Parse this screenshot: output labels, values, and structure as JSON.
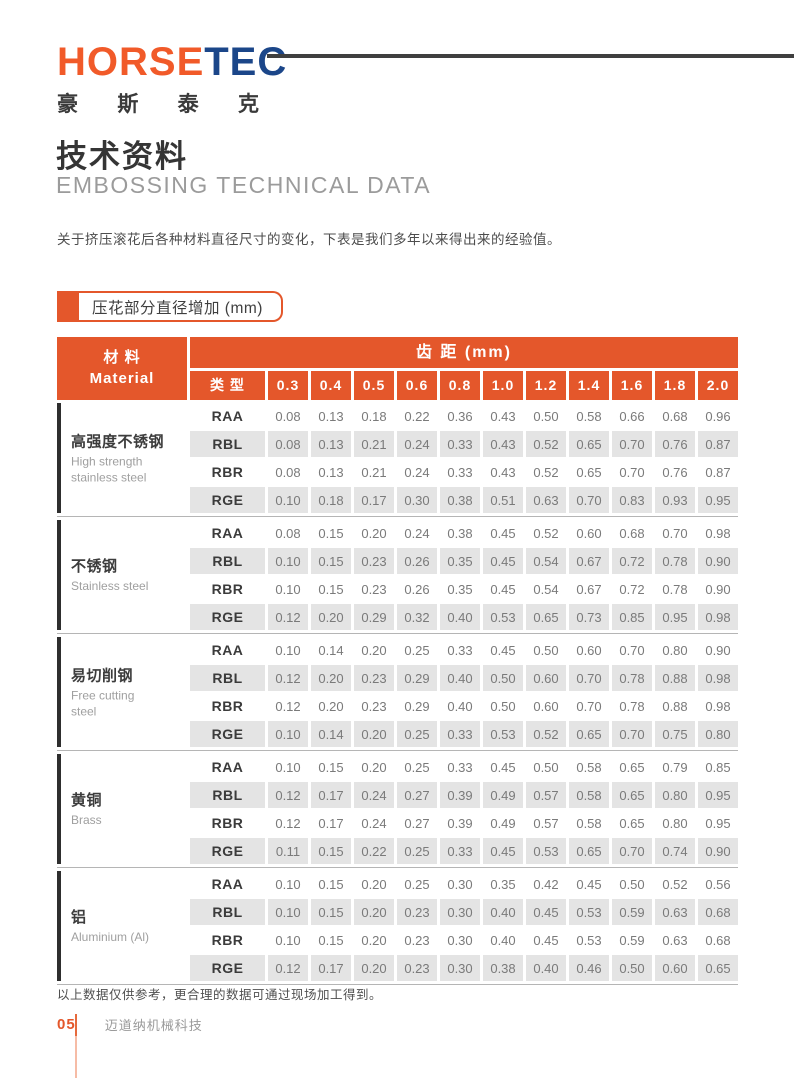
{
  "logo": {
    "brand_orange": "HORSE",
    "brand_blue": "TEC",
    "cn_chars": [
      "豪",
      "斯",
      "泰",
      "克"
    ]
  },
  "header": {
    "title_cn": "技术资料",
    "title_en": "EMBOSSING TECHNICAL DATA"
  },
  "intro": "关于挤压滚花后各种材料直径尺寸的变化，下表是我们多年以来得出来的经验值。",
  "table_label": "压花部分直径增加 (mm)",
  "table": {
    "group_header": "齿 距 (mm)",
    "material_header_cn": "材 料",
    "material_header_en": "Material",
    "type_header": "类 型",
    "pitches": [
      "0.3",
      "0.4",
      "0.5",
      "0.6",
      "0.8",
      "1.0",
      "1.2",
      "1.4",
      "1.6",
      "1.8",
      "2.0"
    ],
    "materials": [
      {
        "name_cn": "高强度不锈钢",
        "name_en": "High strength stainless steel",
        "rows": [
          {
            "type": "RAA",
            "values": [
              "0.08",
              "0.13",
              "0.18",
              "0.22",
              "0.36",
              "0.43",
              "0.50",
              "0.58",
              "0.66",
              "0.68",
              "0.96"
            ]
          },
          {
            "type": "RBL",
            "values": [
              "0.08",
              "0.13",
              "0.21",
              "0.24",
              "0.33",
              "0.43",
              "0.52",
              "0.65",
              "0.70",
              "0.76",
              "0.87"
            ]
          },
          {
            "type": "RBR",
            "values": [
              "0.08",
              "0.13",
              "0.21",
              "0.24",
              "0.33",
              "0.43",
              "0.52",
              "0.65",
              "0.70",
              "0.76",
              "0.87"
            ]
          },
          {
            "type": "RGE",
            "values": [
              "0.10",
              "0.18",
              "0.17",
              "0.30",
              "0.38",
              "0.51",
              "0.63",
              "0.70",
              "0.83",
              "0.93",
              "0.95"
            ]
          }
        ]
      },
      {
        "name_cn": "不锈钢",
        "name_en": "Stainless steel",
        "rows": [
          {
            "type": "RAA",
            "values": [
              "0.08",
              "0.15",
              "0.20",
              "0.24",
              "0.38",
              "0.45",
              "0.52",
              "0.60",
              "0.68",
              "0.70",
              "0.98"
            ]
          },
          {
            "type": "RBL",
            "values": [
              "0.10",
              "0.15",
              "0.23",
              "0.26",
              "0.35",
              "0.45",
              "0.54",
              "0.67",
              "0.72",
              "0.78",
              "0.90"
            ]
          },
          {
            "type": "RBR",
            "values": [
              "0.10",
              "0.15",
              "0.23",
              "0.26",
              "0.35",
              "0.45",
              "0.54",
              "0.67",
              "0.72",
              "0.78",
              "0.90"
            ]
          },
          {
            "type": "RGE",
            "values": [
              "0.12",
              "0.20",
              "0.29",
              "0.32",
              "0.40",
              "0.53",
              "0.65",
              "0.73",
              "0.85",
              "0.95",
              "0.98"
            ]
          }
        ]
      },
      {
        "name_cn": "易切削钢",
        "name_en": "Free cutting steel",
        "rows": [
          {
            "type": "RAA",
            "values": [
              "0.10",
              "0.14",
              "0.20",
              "0.25",
              "0.33",
              "0.45",
              "0.50",
              "0.60",
              "0.70",
              "0.80",
              "0.90"
            ]
          },
          {
            "type": "RBL",
            "values": [
              "0.12",
              "0.20",
              "0.23",
              "0.29",
              "0.40",
              "0.50",
              "0.60",
              "0.70",
              "0.78",
              "0.88",
              "0.98"
            ]
          },
          {
            "type": "RBR",
            "values": [
              "0.12",
              "0.20",
              "0.23",
              "0.29",
              "0.40",
              "0.50",
              "0.60",
              "0.70",
              "0.78",
              "0.88",
              "0.98"
            ]
          },
          {
            "type": "RGE",
            "values": [
              "0.10",
              "0.14",
              "0.20",
              "0.25",
              "0.33",
              "0.53",
              "0.52",
              "0.65",
              "0.70",
              "0.75",
              "0.80"
            ]
          }
        ]
      },
      {
        "name_cn": "黄铜",
        "name_en": "Brass",
        "rows": [
          {
            "type": "RAA",
            "values": [
              "0.10",
              "0.15",
              "0.20",
              "0.25",
              "0.33",
              "0.45",
              "0.50",
              "0.58",
              "0.65",
              "0.79",
              "0.85"
            ]
          },
          {
            "type": "RBL",
            "values": [
              "0.12",
              "0.17",
              "0.24",
              "0.27",
              "0.39",
              "0.49",
              "0.57",
              "0.58",
              "0.65",
              "0.80",
              "0.95"
            ]
          },
          {
            "type": "RBR",
            "values": [
              "0.12",
              "0.17",
              "0.24",
              "0.27",
              "0.39",
              "0.49",
              "0.57",
              "0.58",
              "0.65",
              "0.80",
              "0.95"
            ]
          },
          {
            "type": "RGE",
            "values": [
              "0.11",
              "0.15",
              "0.22",
              "0.25",
              "0.33",
              "0.45",
              "0.53",
              "0.65",
              "0.70",
              "0.74",
              "0.90"
            ]
          }
        ]
      },
      {
        "name_cn": "铝",
        "name_en": "Aluminium (Al)",
        "rows": [
          {
            "type": "RAA",
            "values": [
              "0.10",
              "0.15",
              "0.20",
              "0.25",
              "0.30",
              "0.35",
              "0.42",
              "0.45",
              "0.50",
              "0.52",
              "0.56"
            ]
          },
          {
            "type": "RBL",
            "values": [
              "0.10",
              "0.15",
              "0.20",
              "0.23",
              "0.30",
              "0.40",
              "0.45",
              "0.53",
              "0.59",
              "0.63",
              "0.68"
            ]
          },
          {
            "type": "RBR",
            "values": [
              "0.10",
              "0.15",
              "0.20",
              "0.23",
              "0.30",
              "0.40",
              "0.45",
              "0.53",
              "0.59",
              "0.63",
              "0.68"
            ]
          },
          {
            "type": "RGE",
            "values": [
              "0.12",
              "0.17",
              "0.20",
              "0.23",
              "0.30",
              "0.38",
              "0.40",
              "0.46",
              "0.50",
              "0.60",
              "0.65"
            ]
          }
        ]
      }
    ]
  },
  "footnote": "以上数据仅供参考，更合理的数据可通过现场加工得到。",
  "footer": {
    "page_no": "05",
    "company": "迈道纳机械科技"
  },
  "colors": {
    "accent_orange": "#E4572B",
    "logo_orange": "#F15A29",
    "logo_blue": "#1B4689",
    "row_stripe": "#E4E4E4",
    "rule_dark": "#3F3F3F"
  }
}
